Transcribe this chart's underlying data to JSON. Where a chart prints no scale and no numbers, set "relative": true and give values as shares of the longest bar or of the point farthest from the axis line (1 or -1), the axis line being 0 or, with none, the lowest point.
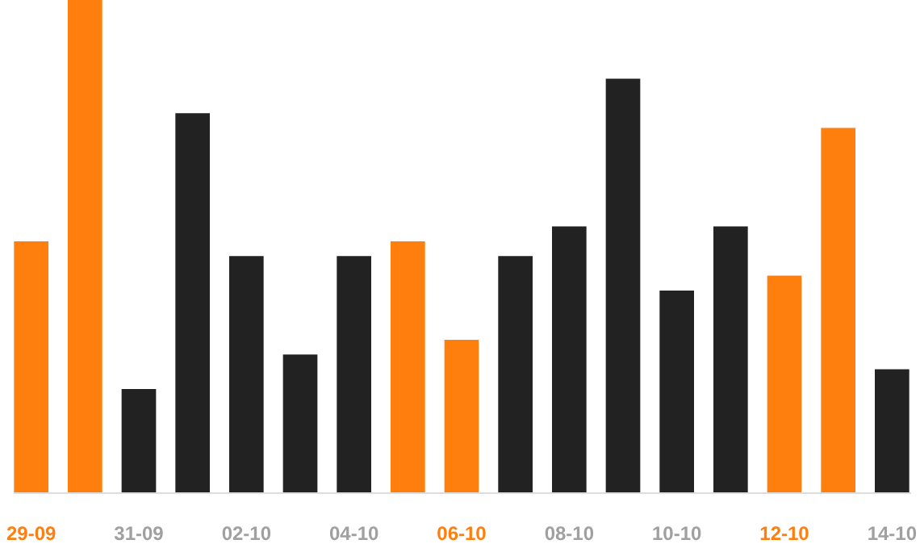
{
  "chart_data": {
    "type": "bar",
    "relative": true,
    "categories": [
      "29-09",
      null,
      "31-09",
      null,
      "02-10",
      null,
      "04-10",
      null,
      "06-10",
      null,
      "08-10",
      null,
      "10-10",
      null,
      "12-10",
      null,
      "14-10"
    ],
    "values": [
      0.51,
      1,
      0.21,
      0.77,
      0.48,
      0.28,
      0.48,
      0.51,
      0.31,
      0.48,
      0.54,
      0.84,
      0.41,
      0.54,
      0.44,
      0.74,
      0.25
    ],
    "colors": [
      "#ff7f0e",
      "#ff7f0e",
      "#222222",
      "#222222",
      "#222222",
      "#222222",
      "#222222",
      "#ff7f0e",
      "#ff7f0e",
      "#222222",
      "#222222",
      "#222222",
      "#222222",
      "#222222",
      "#ff7f0e",
      "#ff7f0e",
      "#222222"
    ]
  }
}
